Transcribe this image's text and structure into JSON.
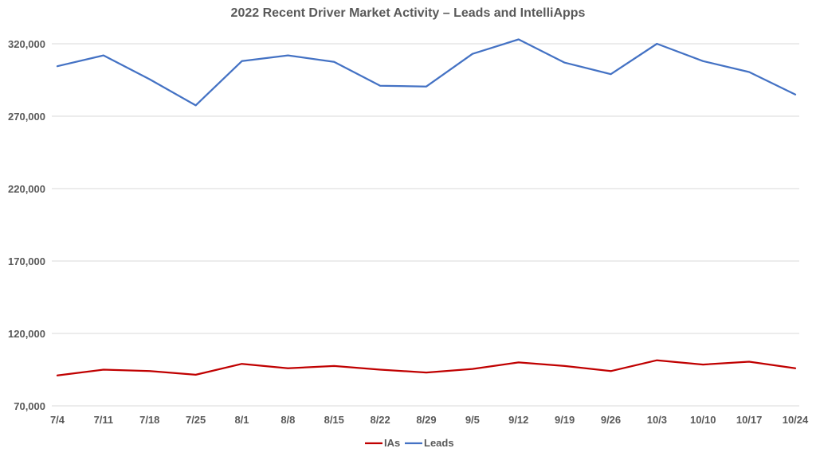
{
  "chart_data": {
    "type": "line",
    "title": "2022 Recent Driver Market Activity – Leads and IntelliApps",
    "xlabel": "",
    "ylabel": "",
    "categories": [
      "7/4",
      "7/11",
      "7/18",
      "7/25",
      "8/1",
      "8/8",
      "8/15",
      "8/22",
      "8/29",
      "9/5",
      "9/12",
      "9/19",
      "9/26",
      "10/3",
      "10/10",
      "10/17",
      "10/24"
    ],
    "ylim": [
      70000,
      330000
    ],
    "yticks": [
      70000,
      120000,
      170000,
      220000,
      270000,
      320000
    ],
    "ytick_labels": [
      "70,000",
      "120,000",
      "170,000",
      "220,000",
      "270,000",
      "320,000"
    ],
    "grid": true,
    "legend_position": "bottom",
    "series": [
      {
        "name": "IAs",
        "color": "#c00000",
        "values": [
          91000,
          95000,
          94000,
          91500,
          99000,
          96000,
          97500,
          95000,
          93000,
          95500,
          100000,
          97500,
          94000,
          101500,
          98500,
          100500,
          96000
        ]
      },
      {
        "name": "Leads",
        "color": "#4472c4",
        "values": [
          304500,
          312000,
          295500,
          277500,
          308000,
          312000,
          307500,
          291000,
          290500,
          313000,
          323000,
          307000,
          299000,
          320000,
          308000,
          300500,
          285000
        ]
      }
    ]
  }
}
